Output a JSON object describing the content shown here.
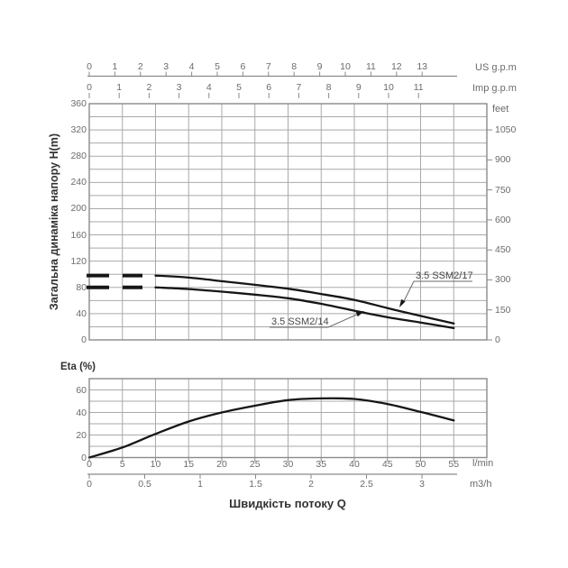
{
  "page": {
    "background": "#ffffff"
  },
  "labels": {
    "y_axis_title": "Загальна динаміка напору H(m)",
    "eta_axis_title": "Eta (%)",
    "x_axis_title": "Швидкість потоку Q",
    "us_unit": "US g.p.m",
    "imp_unit": "Imp g.p.m",
    "feet_unit": "feet",
    "lmin_unit": "l/min",
    "m3h_unit": "m3/h",
    "curve1_label": "3.5 SSM2/17",
    "curve2_label": "3.5 SSM2/14"
  },
  "colors": {
    "curve": "#161616",
    "grid": "#a9a9a9",
    "frame": "#8a8a8a",
    "tick_text": "#6b6b6b",
    "title_text": "#323232"
  },
  "chart_data": [
    {
      "id": "head_flow_curve",
      "type": "line",
      "title": "Pump head vs flow (H-Q)",
      "xlabel": "Швидкість потоку Q",
      "ylabel": "Загальна динаміка напору H(m)",
      "ylabel_right": "feet",
      "grid": true,
      "xlim_lmin": [
        0,
        60
      ],
      "ylim_m": [
        0,
        360
      ],
      "x_ticks": {
        "us_gpm": [
          0,
          1,
          2,
          3,
          4,
          5,
          6,
          7,
          8,
          9,
          10,
          11,
          12,
          13
        ],
        "imp_gpm": [
          0,
          1,
          2,
          3,
          4,
          5,
          6,
          7,
          8,
          9,
          10,
          11
        ],
        "lmin": [
          0,
          5,
          10,
          15,
          20,
          25,
          30,
          35,
          40,
          45,
          50,
          55
        ],
        "m3h": [
          0,
          0.5,
          1,
          1.5,
          2,
          2.5,
          3
        ]
      },
      "y_ticks": {
        "head_m": [
          0,
          40,
          80,
          120,
          160,
          200,
          240,
          280,
          320,
          360
        ],
        "feet": [
          0,
          150,
          300,
          450,
          600,
          750,
          900,
          1050
        ]
      },
      "series": [
        {
          "name": "3.5 SSM2/17",
          "dashed_low_flow": {
            "x_lmin": [
              0,
              8
            ],
            "head_m": 98
          },
          "points_lmin_m": [
            [
              10,
              98
            ],
            [
              15,
              95
            ],
            [
              20,
              89.5
            ],
            [
              25,
              84
            ],
            [
              30,
              78
            ],
            [
              35,
              70
            ],
            [
              40,
              61
            ],
            [
              45,
              48.5
            ],
            [
              50,
              36.5
            ],
            [
              55,
              25
            ]
          ]
        },
        {
          "name": "3.5 SSM2/14",
          "dashed_low_flow": {
            "x_lmin": [
              0,
              8
            ],
            "head_m": 80
          },
          "points_lmin_m": [
            [
              10,
              80
            ],
            [
              15,
              77.5
            ],
            [
              20,
              73.5
            ],
            [
              25,
              69
            ],
            [
              30,
              63.5
            ],
            [
              35,
              55
            ],
            [
              40,
              44.5
            ],
            [
              45,
              34.5
            ],
            [
              50,
              26.5
            ],
            [
              55,
              18
            ]
          ]
        }
      ]
    },
    {
      "id": "efficiency_curve",
      "type": "line",
      "title": "Pump efficiency vs flow",
      "ylabel": "Eta (%)",
      "grid": true,
      "xlim_lmin": [
        0,
        60
      ],
      "ylim_pct": [
        0,
        70
      ],
      "y_ticks": {
        "eta_pct": [
          0,
          20,
          40,
          60
        ]
      },
      "points_lmin_pct": [
        [
          0,
          0
        ],
        [
          5,
          9
        ],
        [
          10,
          21
        ],
        [
          15,
          32
        ],
        [
          20,
          40
        ],
        [
          25,
          46
        ],
        [
          30,
          51
        ],
        [
          35,
          52.5
        ],
        [
          40,
          52
        ],
        [
          45,
          47.5
        ],
        [
          50,
          40.5
        ],
        [
          55,
          33
        ]
      ]
    }
  ]
}
